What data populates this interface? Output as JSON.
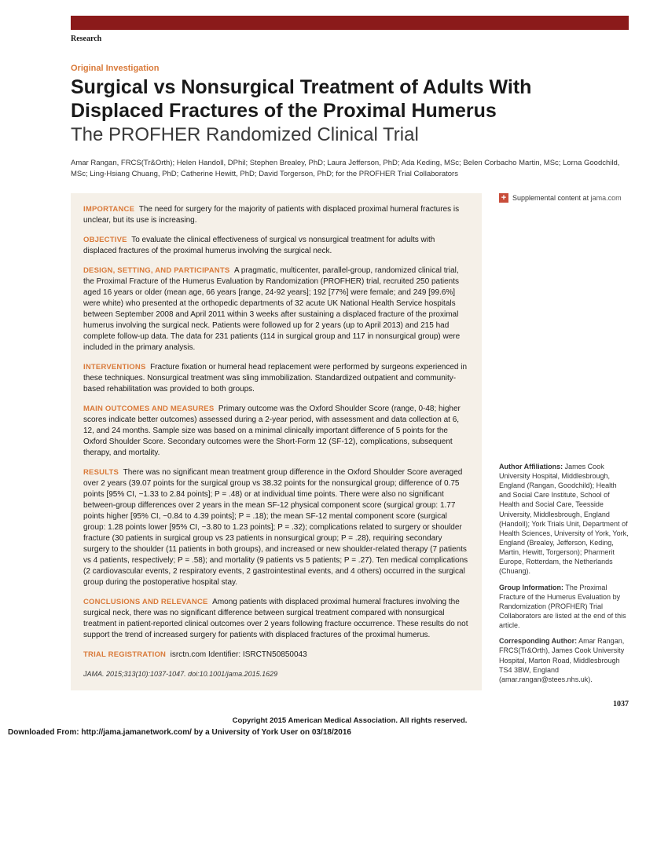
{
  "header": {
    "section_label": "Research",
    "investigation_type": "Original Investigation",
    "title_bold": "Surgical vs Nonsurgical Treatment of Adults With Displaced Fractures of the Proximal Humerus",
    "title_light": "The PROFHER Randomized Clinical Trial",
    "authors": "Amar Rangan, FRCS(Tr&Orth); Helen Handoll, DPhil; Stephen Brealey, PhD; Laura Jefferson, PhD; Ada Keding, MSc; Belen Corbacho Martin, MSc; Lorna Goodchild, MSc; Ling-Hsiang Chuang, PhD; Catherine Hewitt, PhD; David Torgerson, PhD; for the PROFHER Trial Collaborators"
  },
  "abstract": {
    "importance": {
      "heading": "IMPORTANCE",
      "body": "The need for surgery for the majority of patients with displaced proximal humeral fractures is unclear, but its use is increasing."
    },
    "objective": {
      "heading": "OBJECTIVE",
      "body": "To evaluate the clinical effectiveness of surgical vs nonsurgical treatment for adults with displaced fractures of the proximal humerus involving the surgical neck."
    },
    "design": {
      "heading": "DESIGN, SETTING, AND PARTICIPANTS",
      "body": "A pragmatic, multicenter, parallel-group, randomized clinical trial, the Proximal Fracture of the Humerus Evaluation by Randomization (PROFHER) trial, recruited 250 patients aged 16 years or older (mean age, 66 years [range, 24-92 years]; 192 [77%] were female; and 249 [99.6%] were white) who presented at the orthopedic departments of 32 acute UK National Health Service hospitals between September 2008 and April 2011 within 3 weeks after sustaining a displaced fracture of the proximal humerus involving the surgical neck. Patients were followed up for 2 years (up to April 2013) and 215 had complete follow-up data. The data for 231 patients (114 in surgical group and 117 in nonsurgical group) were included in the primary analysis."
    },
    "interventions": {
      "heading": "INTERVENTIONS",
      "body": "Fracture fixation or humeral head replacement were performed by surgeons experienced in these techniques. Nonsurgical treatment was sling immobilization. Standardized outpatient and community-based rehabilitation was provided to both groups."
    },
    "outcomes": {
      "heading": "MAIN OUTCOMES AND MEASURES",
      "body": "Primary outcome was the Oxford Shoulder Score (range, 0-48; higher scores indicate better outcomes) assessed during a 2-year period, with assessment and data collection at 6, 12, and 24 months. Sample size was based on a minimal clinically important difference of 5 points for the Oxford Shoulder Score. Secondary outcomes were the Short-Form 12 (SF-12), complications, subsequent therapy, and mortality."
    },
    "results": {
      "heading": "RESULTS",
      "body": "There was no significant mean treatment group difference in the Oxford Shoulder Score averaged over 2 years (39.07 points for the surgical group vs 38.32 points for the nonsurgical group; difference of 0.75 points [95% CI, −1.33 to 2.84 points]; P = .48) or at individual time points. There were also no significant between-group differences over 2 years in the mean SF-12 physical component score (surgical group: 1.77 points higher [95% CI, −0.84 to 4.39 points]; P = .18); the mean SF-12 mental component score (surgical group: 1.28 points lower [95% CI, −3.80 to 1.23 points]; P = .32); complications related to surgery or shoulder fracture (30 patients in surgical group vs 23 patients in nonsurgical group; P = .28), requiring secondary surgery to the shoulder (11 patients in both groups), and increased or new shoulder-related therapy (7 patients vs 4 patients, respectively; P = .58); and mortality (9 patients vs 5 patients; P = .27). Ten medical complications (2 cardiovascular events, 2 respiratory events, 2 gastrointestinal events, and 4 others) occurred in the surgical group during the postoperative hospital stay."
    },
    "conclusions": {
      "heading": "CONCLUSIONS AND RELEVANCE",
      "body": "Among patients with displaced proximal humeral fractures involving the surgical neck, there was no significant difference between surgical treatment compared with nonsurgical treatment in patient-reported clinical outcomes over 2 years following fracture occurrence. These results do not support the trend of increased surgery for patients with displaced fractures of the proximal humerus."
    },
    "trial_reg": {
      "heading": "TRIAL REGISTRATION",
      "body": "isrctn.com Identifier: ISRCTN50850043"
    },
    "citation": "JAMA. 2015;313(10):1037-1047. doi:10.1001/jama.2015.1629"
  },
  "sidebar": {
    "supplemental_label": "Supplemental content at",
    "supplemental_link": "jama.com",
    "affiliations": {
      "label": "Author Affiliations:",
      "body": "James Cook University Hospital, Middlesbrough, England (Rangan, Goodchild); Health and Social Care Institute, School of Health and Social Care, Teesside University, Middlesbrough, England (Handoll); York Trials Unit, Department of Health Sciences, University of York, York, England (Brealey, Jefferson, Keding, Martin, Hewitt, Torgerson); Pharmerit Europe, Rotterdam, the Netherlands (Chuang)."
    },
    "group_info": {
      "label": "Group Information:",
      "body": "The Proximal Fracture of the Humerus Evaluation by Randomization (PROFHER) Trial Collaborators are listed at the end of this article."
    },
    "corresponding": {
      "label": "Corresponding Author:",
      "body": "Amar Rangan, FRCS(Tr&Orth), James Cook University Hospital, Marton Road, Middlesbrough TS4 3BW, England (amar.rangan@stees.nhs.uk)."
    }
  },
  "footer": {
    "page_number": "1037",
    "copyright": "Copyright 2015 American Medical Association. All rights reserved.",
    "download_note": "Downloaded From: http://jama.jamanetwork.com/ by a University of York User  on 03/18/2016"
  }
}
